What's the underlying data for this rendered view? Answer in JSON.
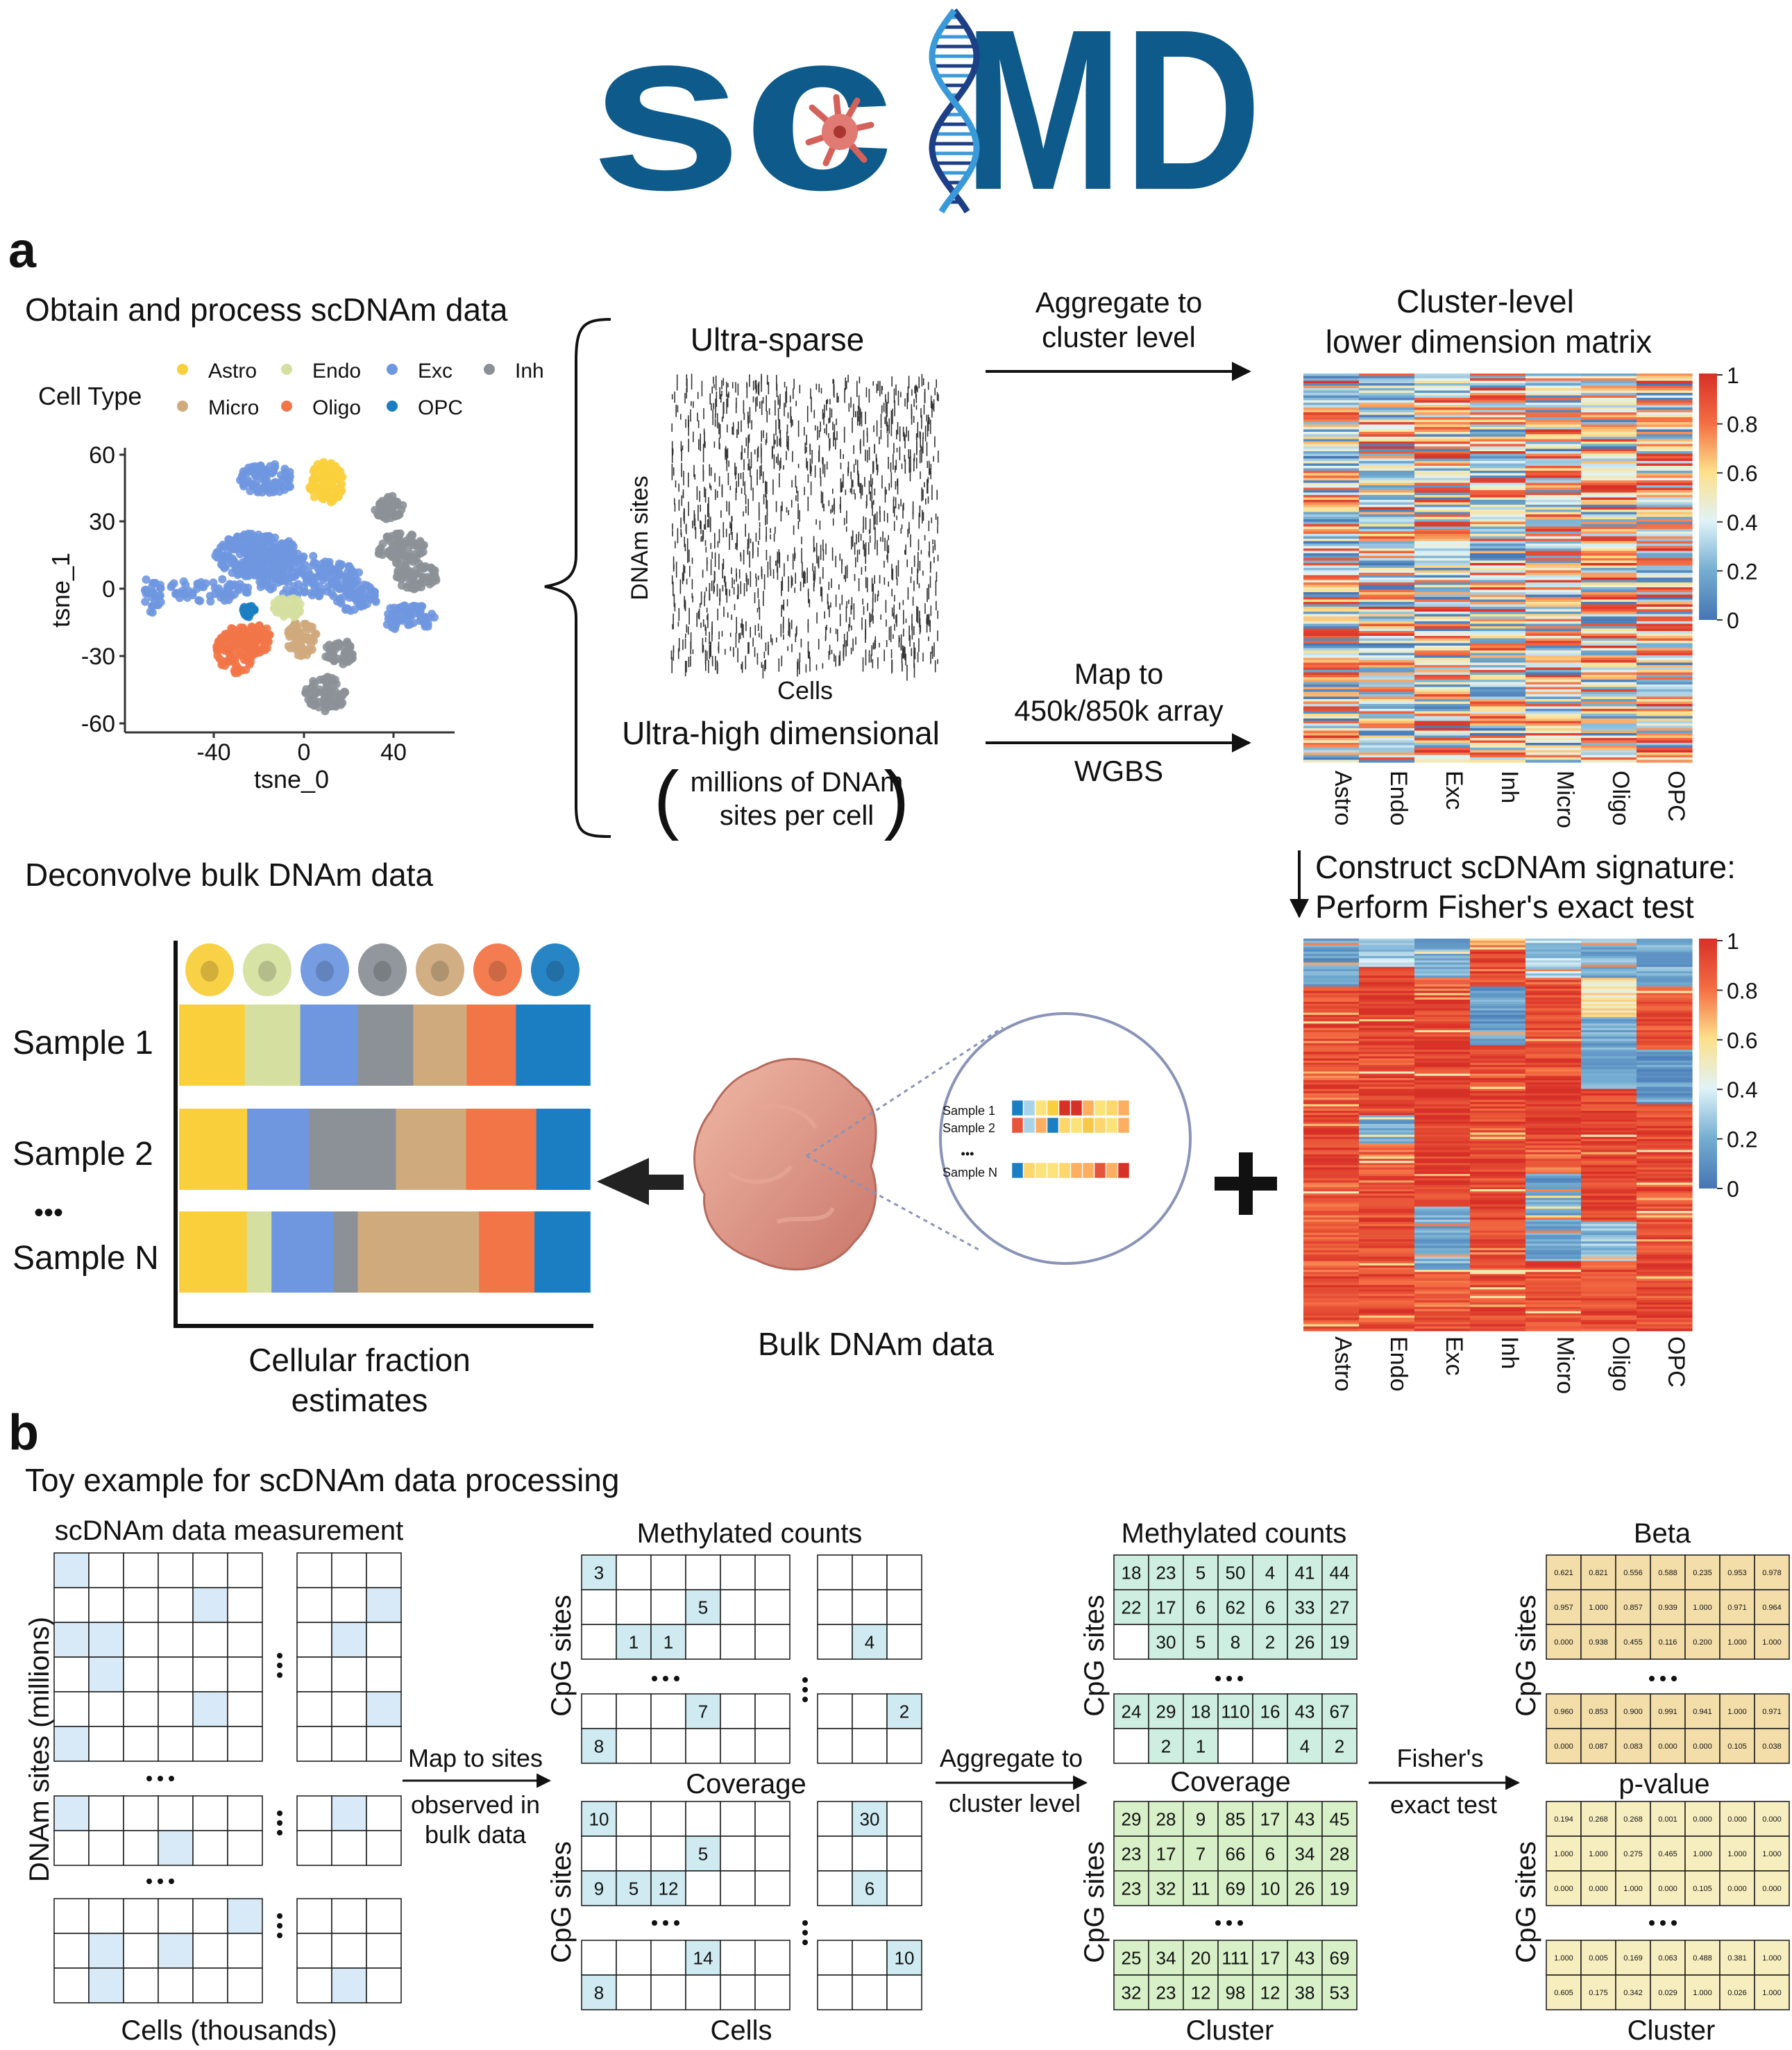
{
  "logo": {
    "text_left": "sc",
    "text_right": "MD"
  },
  "colors": {
    "logo_blue": "#0d5a8b",
    "Astro": "#f9cf3c",
    "Endo": "#d5e0a0",
    "Exc": "#6f97e0",
    "Inh": "#8b9197",
    "Micro": "#cfaa7d",
    "Oligo": "#f27548",
    "OPC": "#1c7ec2",
    "cell_light_blue": "#d8eaf7",
    "cell_cyan": "#cfeaf0",
    "cell_teal": "#cdeee0",
    "cell_green": "#d8f0c8",
    "cell_beta": "#f3deaa",
    "cell_pval": "#f7eec0"
  },
  "panel_a": {
    "label": "a",
    "obtain_title": "Obtain and process scDNAm data",
    "tsne": {
      "legend_title": "Cell Type",
      "legend": [
        "Astro",
        "Endo",
        "Exc",
        "Inh",
        "Micro",
        "Oligo",
        "OPC"
      ],
      "xlabel": "tsne_0",
      "ylabel": "tsne_1",
      "xticks": [
        "-40",
        "0",
        "40"
      ],
      "yticks": [
        "60",
        "30",
        "0",
        "-30",
        "-60"
      ]
    },
    "sparse": {
      "title": "Ultra-sparse",
      "ylabel": "DNAm sites",
      "xlabel": "Cells",
      "dim_title": "Ultra-high dimensional",
      "dim_sub1": "millions of DNAm",
      "dim_sub2": "sites per cell"
    },
    "arrow_top": {
      "line1": "Aggregate to",
      "line2": "cluster level"
    },
    "arrow_bottom": {
      "line1": "Map to",
      "line2": "450k/850k array",
      "line3": "WGBS"
    },
    "cluster_matrix": {
      "title1": "Cluster-level",
      "title2": "lower dimension matrix"
    },
    "heatmap_cols": [
      "Astro",
      "Endo",
      "Exc",
      "Inh",
      "Micro",
      "Oligo",
      "OPC"
    ],
    "colorbar_ticks": [
      "1",
      "0.8",
      "0.6",
      "0.4",
      "0.2",
      "0"
    ],
    "signature": {
      "line1": "Construct scDNAm signature:",
      "line2": "Perform Fisher's exact  test"
    },
    "deconvolve_title": "Deconvolve bulk DNAm data",
    "samples": [
      "Sample 1",
      "Sample 2",
      "Sample N"
    ],
    "dots": "•••",
    "fractions": [
      [
        0.16,
        0.135,
        0.14,
        0.135,
        0.13,
        0.12,
        0.18
      ],
      [
        0.165,
        0.0,
        0.15,
        0.21,
        0.17,
        0.17,
        0.13
      ],
      [
        0.165,
        0.06,
        0.15,
        0.06,
        0.295,
        0.135,
        0.135
      ]
    ],
    "fraction_caption1": "Cellular fraction",
    "fraction_caption2": "estimates",
    "bulk_caption": "Bulk DNAm data",
    "zoom_labels": [
      "Sample 1",
      "Sample 2",
      "Sample N"
    ]
  },
  "panel_b": {
    "label": "b",
    "title": "Toy example for scDNAm data processing",
    "measurement_title": "scDNAm data measurement",
    "measurement_ylabel": "DNAm sites (millions)",
    "measurement_xlabel": "Cells (thousands)",
    "map_arrow": {
      "line1": "Map to sites",
      "line2": "observed in",
      "line3": "bulk data"
    },
    "methylated_title": "Methylated counts",
    "coverage_title": "Coverage",
    "cpg_label": "CpG sites",
    "cells_label": "Cells",
    "agg_arrow": {
      "line1": "Aggregate to",
      "line2": "cluster level"
    },
    "cluster_label": "Cluster",
    "fisher_arrow": {
      "line1": "Fisher's",
      "line2": "exact test"
    },
    "beta_title": "Beta",
    "pvalue_title": "p-value",
    "meth_counts_top": [
      [
        "3",
        "",
        "",
        "",
        "",
        ""
      ],
      [
        "",
        "",
        "",
        "5",
        "",
        ""
      ],
      [
        "",
        "1",
        "1",
        "",
        "",
        ""
      ]
    ],
    "meth_counts_top_right": [
      [
        "",
        "",
        ""
      ],
      [
        "",
        "",
        ""
      ],
      [
        "",
        "4",
        ""
      ]
    ],
    "meth_counts_bot": [
      [
        "",
        "",
        "",
        "7",
        "",
        ""
      ],
      [
        "8",
        "",
        "",
        "",
        "",
        ""
      ]
    ],
    "meth_counts_bot_right": [
      [
        "",
        "",
        "2"
      ],
      [
        "",
        "",
        ""
      ]
    ],
    "cov_top": [
      [
        "10",
        "",
        "",
        "",
        "",
        ""
      ],
      [
        "",
        "",
        "",
        "5",
        "",
        ""
      ],
      [
        "9",
        "5",
        "12",
        "",
        "",
        ""
      ]
    ],
    "cov_top_right": [
      [
        "",
        "30",
        ""
      ],
      [
        "",
        "",
        ""
      ],
      [
        "",
        "6",
        ""
      ]
    ],
    "cov_bot": [
      [
        "",
        "",
        "",
        "14",
        "",
        ""
      ],
      [
        "8",
        "",
        "",
        "",
        "",
        ""
      ]
    ],
    "cov_bot_right": [
      [
        "",
        "",
        "10"
      ],
      [
        "",
        "",
        ""
      ]
    ],
    "cl_meth_top": [
      [
        "18",
        "23",
        "5",
        "50",
        "4",
        "41",
        "44"
      ],
      [
        "22",
        "17",
        "6",
        "62",
        "6",
        "33",
        "27"
      ],
      [
        "",
        "30",
        "5",
        "8",
        "2",
        "26",
        "19"
      ]
    ],
    "cl_meth_bot": [
      [
        "24",
        "29",
        "18",
        "110",
        "16",
        "43",
        "67"
      ],
      [
        "",
        "2",
        "1",
        "",
        "",
        "4",
        "2"
      ]
    ],
    "cl_cov_top": [
      [
        "29",
        "28",
        "9",
        "85",
        "17",
        "43",
        "45"
      ],
      [
        "23",
        "17",
        "7",
        "66",
        "6",
        "34",
        "28"
      ],
      [
        "23",
        "32",
        "11",
        "69",
        "10",
        "26",
        "19"
      ]
    ],
    "cl_cov_bot": [
      [
        "25",
        "34",
        "20",
        "111",
        "17",
        "43",
        "69"
      ],
      [
        "32",
        "23",
        "12",
        "98",
        "12",
        "38",
        "53"
      ]
    ],
    "beta_top": [
      [
        "0.621",
        "0.821",
        "0.556",
        "0.588",
        "0.235",
        "0.953",
        "0.978"
      ],
      [
        "0.957",
        "1.000",
        "0.857",
        "0.939",
        "1.000",
        "0.971",
        "0.964"
      ],
      [
        "0.000",
        "0.938",
        "0.455",
        "0.116",
        "0.200",
        "1.000",
        "1.000"
      ]
    ],
    "beta_bot": [
      [
        "0.960",
        "0.853",
        "0.900",
        "0.991",
        "0.941",
        "1.000",
        "0.971"
      ],
      [
        "0.000",
        "0.087",
        "0.083",
        "0.000",
        "0.000",
        "0.105",
        "0.038"
      ]
    ],
    "pval_top": [
      [
        "0.194",
        "0.268",
        "0.268",
        "0.001",
        "0.000",
        "0.000",
        "0.000"
      ],
      [
        "1.000",
        "1.000",
        "0.275",
        "0.465",
        "1.000",
        "1.000",
        "1.000"
      ],
      [
        "0.000",
        "0.000",
        "1.000",
        "0.000",
        "0.105",
        "0.000",
        "0.000"
      ]
    ],
    "pval_bot": [
      [
        "1.000",
        "0.005",
        "0.169",
        "0.063",
        "0.488",
        "0.381",
        "1.000"
      ],
      [
        "0.605",
        "0.175",
        "0.342",
        "0.029",
        "1.000",
        "0.026",
        "1.000"
      ]
    ]
  }
}
